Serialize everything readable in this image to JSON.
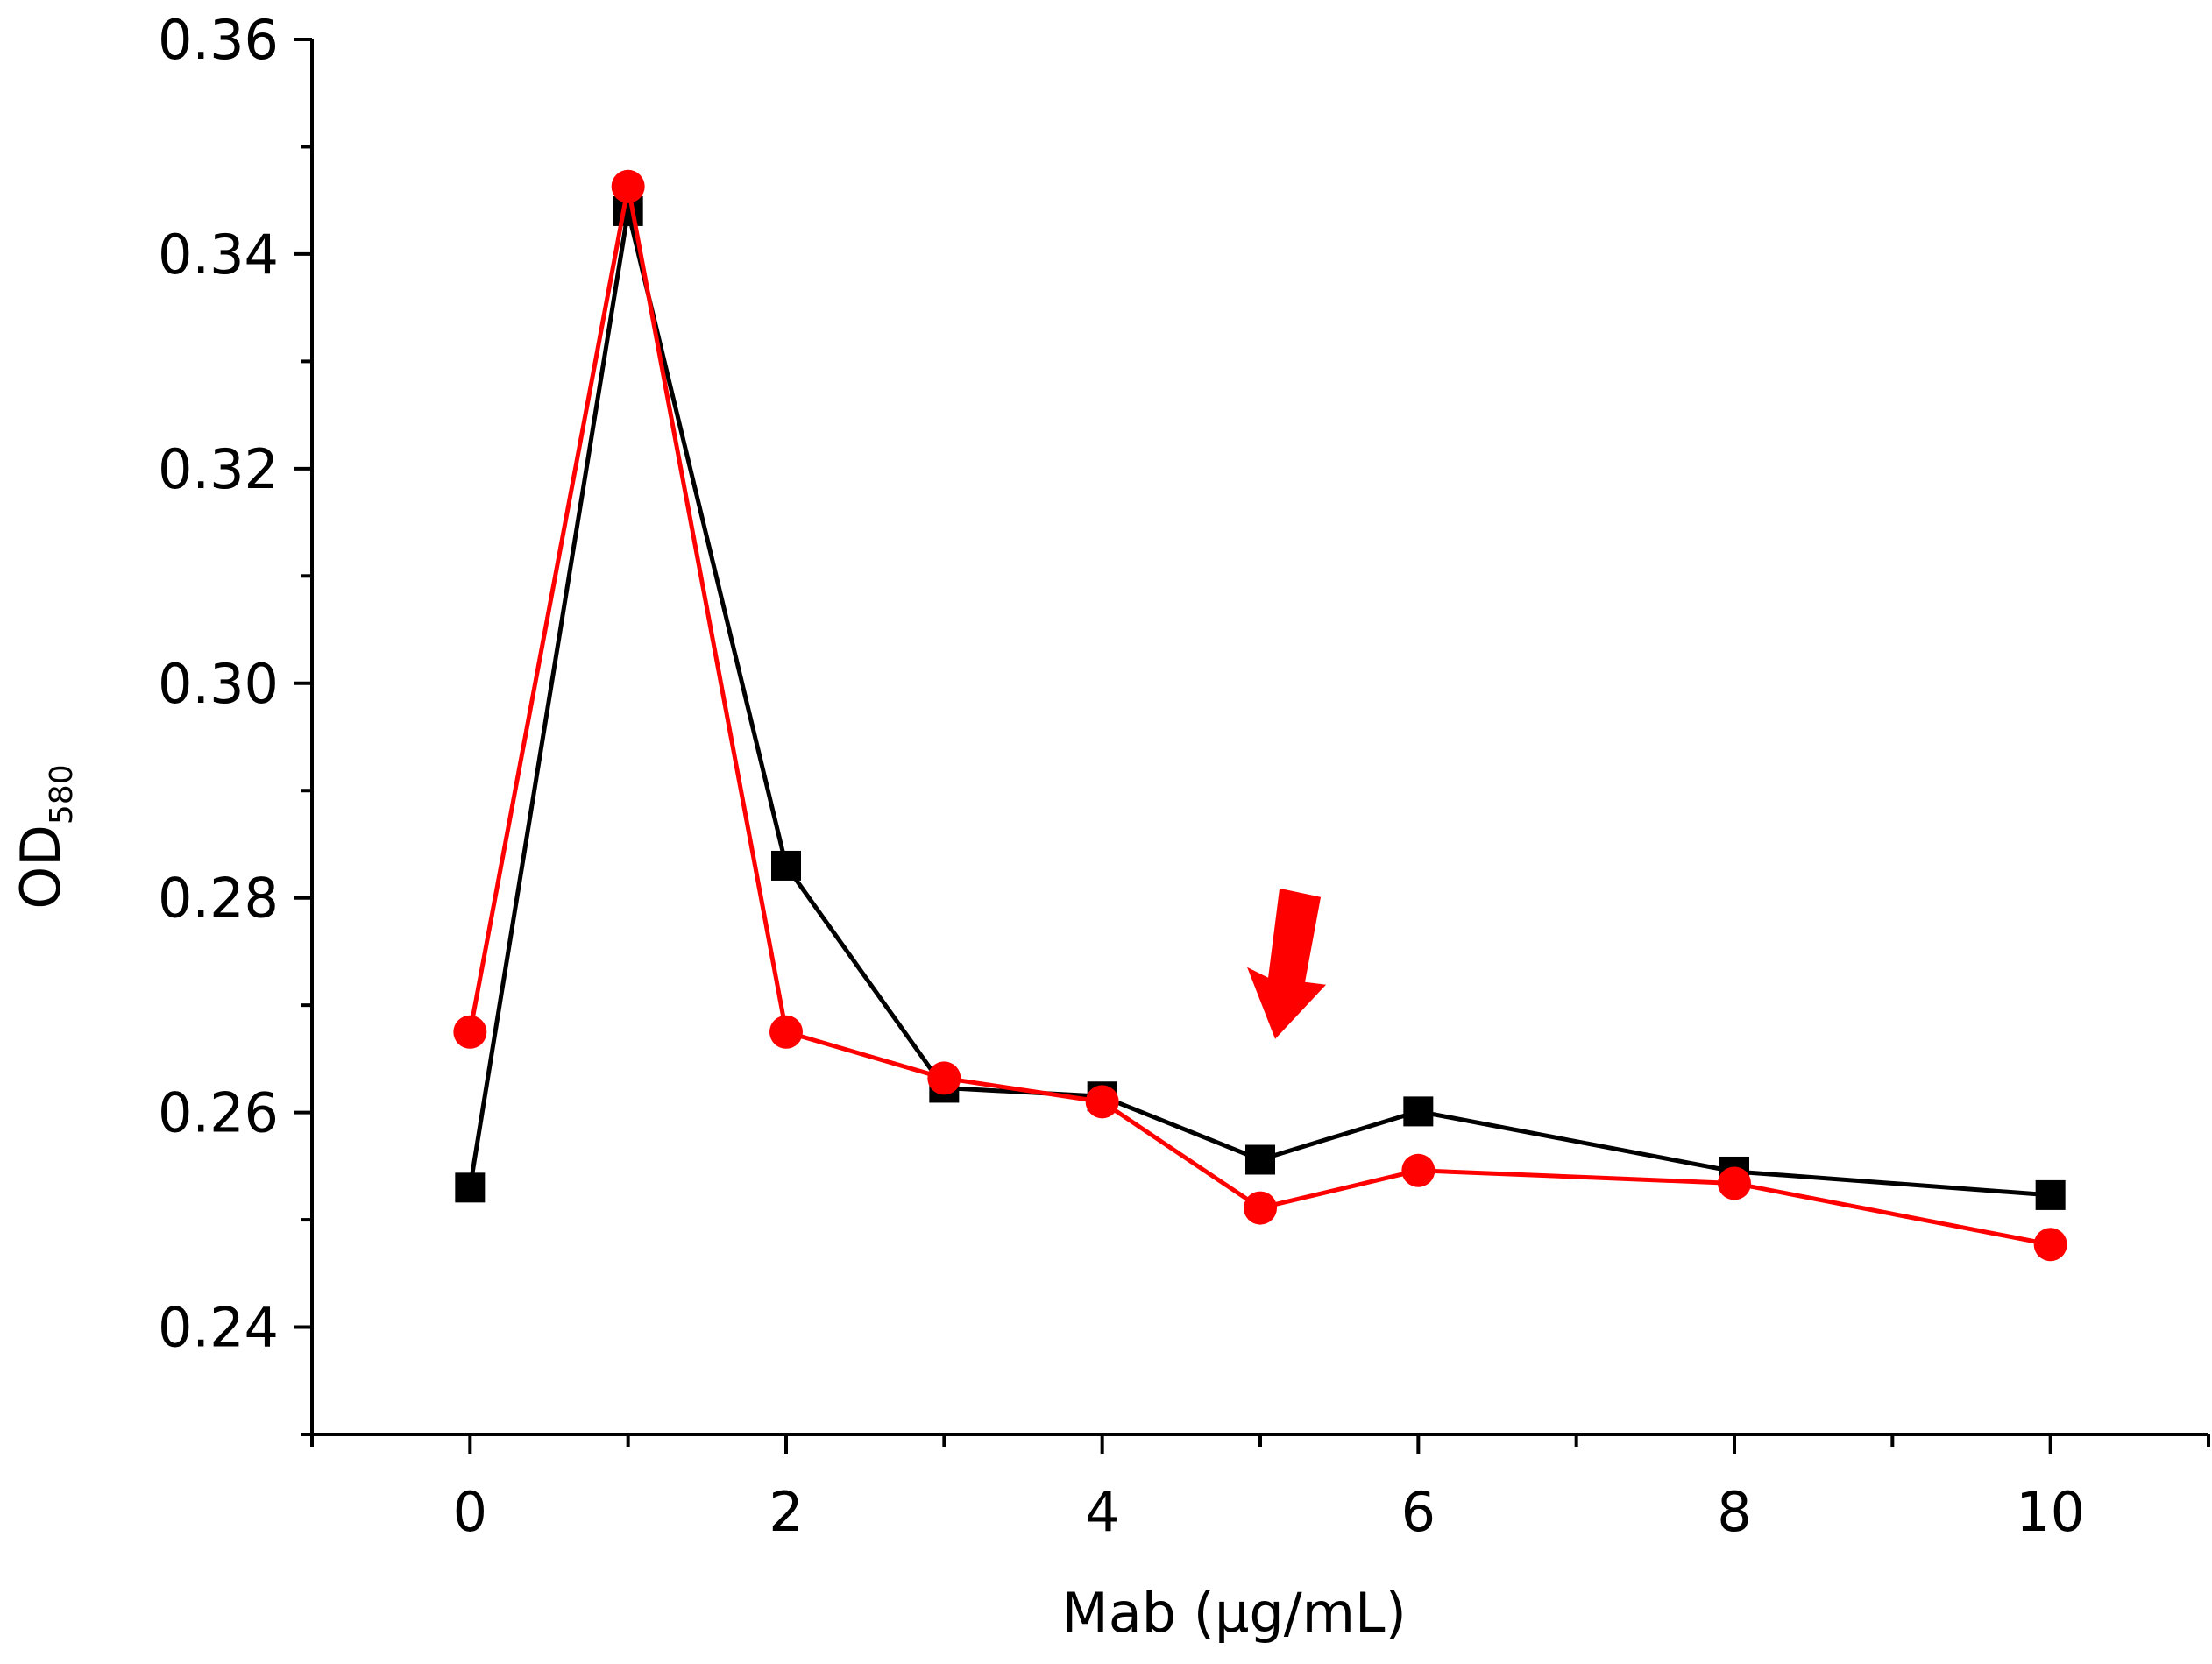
{
  "chart_data": {
    "type": "line",
    "title": "",
    "xlabel": "Mab (μg/mL)",
    "ylabel": "OD",
    "ylabel_subscript": "580",
    "xlim": [
      -1,
      11
    ],
    "ylim": [
      0.23,
      0.36
    ],
    "xticks": [
      0,
      2,
      4,
      6,
      8,
      10
    ],
    "xtick_labels": [
      "0",
      "2",
      "4",
      "6",
      "8",
      "10"
    ],
    "yticks": [
      0.24,
      0.26,
      0.28,
      0.3,
      0.32,
      0.34,
      0.36
    ],
    "ytick_labels": [
      "0.24",
      "0.26",
      "0.28",
      "0.30",
      "0.32",
      "0.34",
      "0.36"
    ],
    "grid": false,
    "legend": "none",
    "series": [
      {
        "name": "black",
        "color": "#000000",
        "marker": "square",
        "x": [
          0,
          1,
          2,
          3,
          4,
          5,
          6,
          8,
          10
        ],
        "y": [
          0.253,
          0.344,
          0.283,
          0.2623,
          0.2615,
          0.2556,
          0.2601,
          0.2545,
          0.2523
        ]
      },
      {
        "name": "red",
        "color": "#ff0000",
        "marker": "circle",
        "x": [
          0,
          1,
          2,
          3,
          4,
          5,
          6,
          8,
          10
        ],
        "y": [
          0.2675,
          0.3463,
          0.2675,
          0.2632,
          0.261,
          0.2511,
          0.2546,
          0.2534,
          0.2477
        ]
      }
    ],
    "annotations": [
      {
        "type": "arrow",
        "color": "#ff0000",
        "direction": "down",
        "points_to_x": 5.15,
        "points_to_y": 0.2675
      }
    ]
  }
}
